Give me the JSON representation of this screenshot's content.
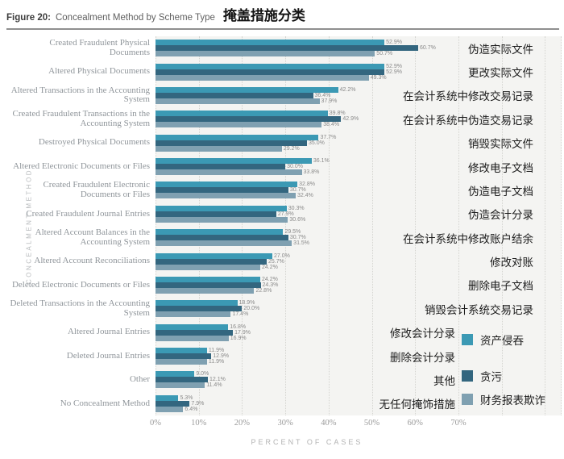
{
  "header": {
    "figure_label": "Figure 20:",
    "title_en": "Concealment Method by Scheme Type",
    "title_zh": "掩盖措施分类"
  },
  "chart_data": {
    "type": "bar",
    "orientation": "horizontal",
    "title": "Figure 20: Concealment Method by Scheme Type 掩盖措施分类",
    "xlabel": "PERCENT OF CASES",
    "ylabel": "CONCEALMENT METHOD",
    "xlim": [
      0,
      70
    ],
    "x_ticks": [
      "0%",
      "10%",
      "20%",
      "30%",
      "40%",
      "50%",
      "60%",
      "70%"
    ],
    "grid": "vertical-dotted",
    "legend_position": "right-bottom",
    "series": [
      {
        "name": "资产侵吞",
        "color": "#3b99b4"
      },
      {
        "name": "贪污",
        "color": "#33667f"
      },
      {
        "name": "财务报表欺诈",
        "color": "#7fa0b1"
      }
    ],
    "rows": [
      {
        "label_en": "Created Fraudulent Physical Documents",
        "label_zh": "伪造实际文件",
        "values": [
          52.9,
          60.7,
          50.7
        ]
      },
      {
        "label_en": "Altered Physical Documents",
        "label_zh": "更改实际文件",
        "values": [
          52.9,
          52.9,
          49.3
        ]
      },
      {
        "label_en": "Altered Transactions in the Accounting System",
        "label_zh": "在会计系统中修改交易记录",
        "values": [
          42.2,
          36.4,
          37.9
        ]
      },
      {
        "label_en": "Created Fraudulent Transactions in the Accounting System",
        "label_zh": "在会计系统中伪造交易记录",
        "values": [
          39.8,
          42.9,
          38.4
        ]
      },
      {
        "label_en": "Destroyed Physical Documents",
        "label_zh": "销毁实际文件",
        "values": [
          37.7,
          35.0,
          29.2
        ]
      },
      {
        "label_en": "Altered Electronic Documents or Files",
        "label_zh": "修改电子文档",
        "values": [
          36.1,
          30.0,
          33.8
        ]
      },
      {
        "label_en": "Created Fraudulent Electronic Documents or Files",
        "label_zh": "伪造电子文档",
        "values": [
          32.8,
          30.7,
          32.4
        ]
      },
      {
        "label_en": "Created Fraudulent Journal Entries",
        "label_zh": "伪造会计分录",
        "values": [
          30.3,
          27.9,
          30.6
        ]
      },
      {
        "label_en": "Altered Account Balances in the Accounting System",
        "label_zh": "在会计系统中修改账户结余",
        "values": [
          29.5,
          30.7,
          31.5
        ]
      },
      {
        "label_en": "Altered Account Reconciliations",
        "label_zh": "修改对账",
        "values": [
          27.0,
          25.7,
          24.2
        ]
      },
      {
        "label_en": "Deleted Electronic Documents or Files",
        "label_zh": "删除电子文档",
        "values": [
          24.2,
          24.3,
          22.8
        ]
      },
      {
        "label_en": "Deleted Transactions in the Accounting System",
        "label_zh": "销毁会计系统交易记录",
        "values": [
          18.9,
          20.0,
          17.4
        ]
      },
      {
        "label_en": "Altered Journal Entries",
        "label_zh": "修改会计分录",
        "values": [
          16.8,
          17.9,
          16.9
        ]
      },
      {
        "label_en": "Deleted Journal Entries",
        "label_zh": "删除会计分录",
        "values": [
          11.9,
          12.9,
          11.9
        ]
      },
      {
        "label_en": "Other",
        "label_zh": "其他",
        "values": [
          9.0,
          12.1,
          11.4
        ]
      },
      {
        "label_en": "No Concealment Method",
        "label_zh": "无任何掩饰措施",
        "values": [
          5.3,
          7.9,
          6.4
        ]
      }
    ]
  }
}
